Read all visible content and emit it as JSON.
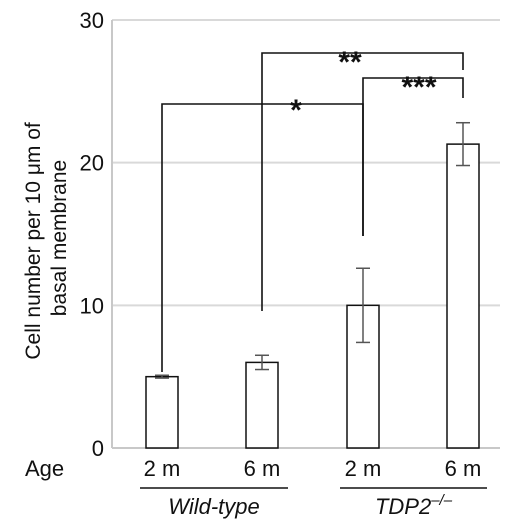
{
  "chart_data": {
    "type": "bar",
    "ylabel_lines": [
      "Cell number per 10 μm of",
      "basal membrane"
    ],
    "ylim": [
      0,
      30
    ],
    "yticks": [
      "0",
      "10",
      "20",
      "30"
    ],
    "grid": true,
    "x_row_label": "Age",
    "categories": [
      "2 m",
      "6 m",
      "2 m",
      "6 m"
    ],
    "groups": [
      {
        "label": "Wild-type",
        "members": [
          0,
          1
        ]
      },
      {
        "label": "TDP2",
        "superscript": "–/–",
        "members": [
          2,
          3
        ]
      }
    ],
    "values": [
      5.0,
      6.0,
      10.0,
      21.3
    ],
    "errors": [
      0.1,
      0.5,
      2.6,
      1.5
    ],
    "significance": [
      {
        "from": 0,
        "to": 2,
        "label": "*"
      },
      {
        "from": 1,
        "to": 3,
        "label": "**"
      },
      {
        "from": 2,
        "to": 3,
        "label": "***"
      }
    ]
  }
}
